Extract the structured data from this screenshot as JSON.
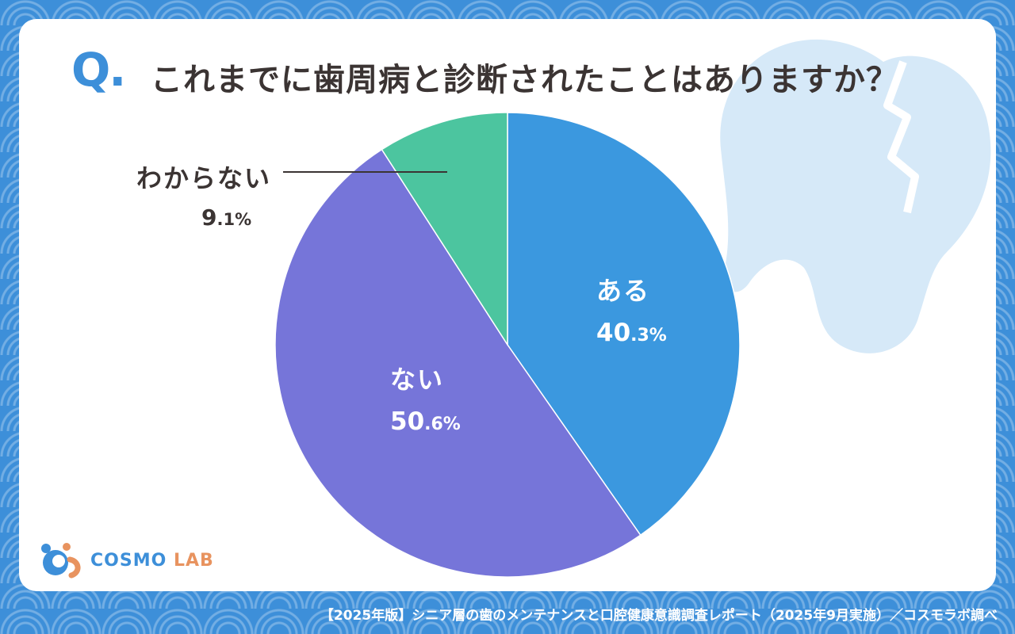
{
  "question": {
    "mark": "Q.",
    "text": "これまでに歯周病と診断されたことはありますか？"
  },
  "chart_data": {
    "type": "pie",
    "title": "これまでに歯周病と診断されたことはありますか？",
    "slices": [
      {
        "label": "ある",
        "value": 40.3,
        "int": "40",
        "dec": ".3%",
        "color": "#3b98df"
      },
      {
        "label": "ない",
        "value": 50.6,
        "int": "50",
        "dec": ".6%",
        "color": "#7675d9"
      },
      {
        "label": "わからない",
        "value": 9.1,
        "int": "9",
        "dec": ".1%",
        "color": "#4cc59f"
      }
    ],
    "start": "top, clockwise",
    "legend": "none"
  },
  "logo": {
    "part1": "COSMO",
    "part2": "LAB"
  },
  "footer": "【2025年版】シニア層の歯のメンテナンスと口腔健康意識調査レポート（2025年9月実施）／コスモラボ調べ",
  "colors": {
    "accent": "#3d8fd9",
    "text": "#3b3433"
  }
}
